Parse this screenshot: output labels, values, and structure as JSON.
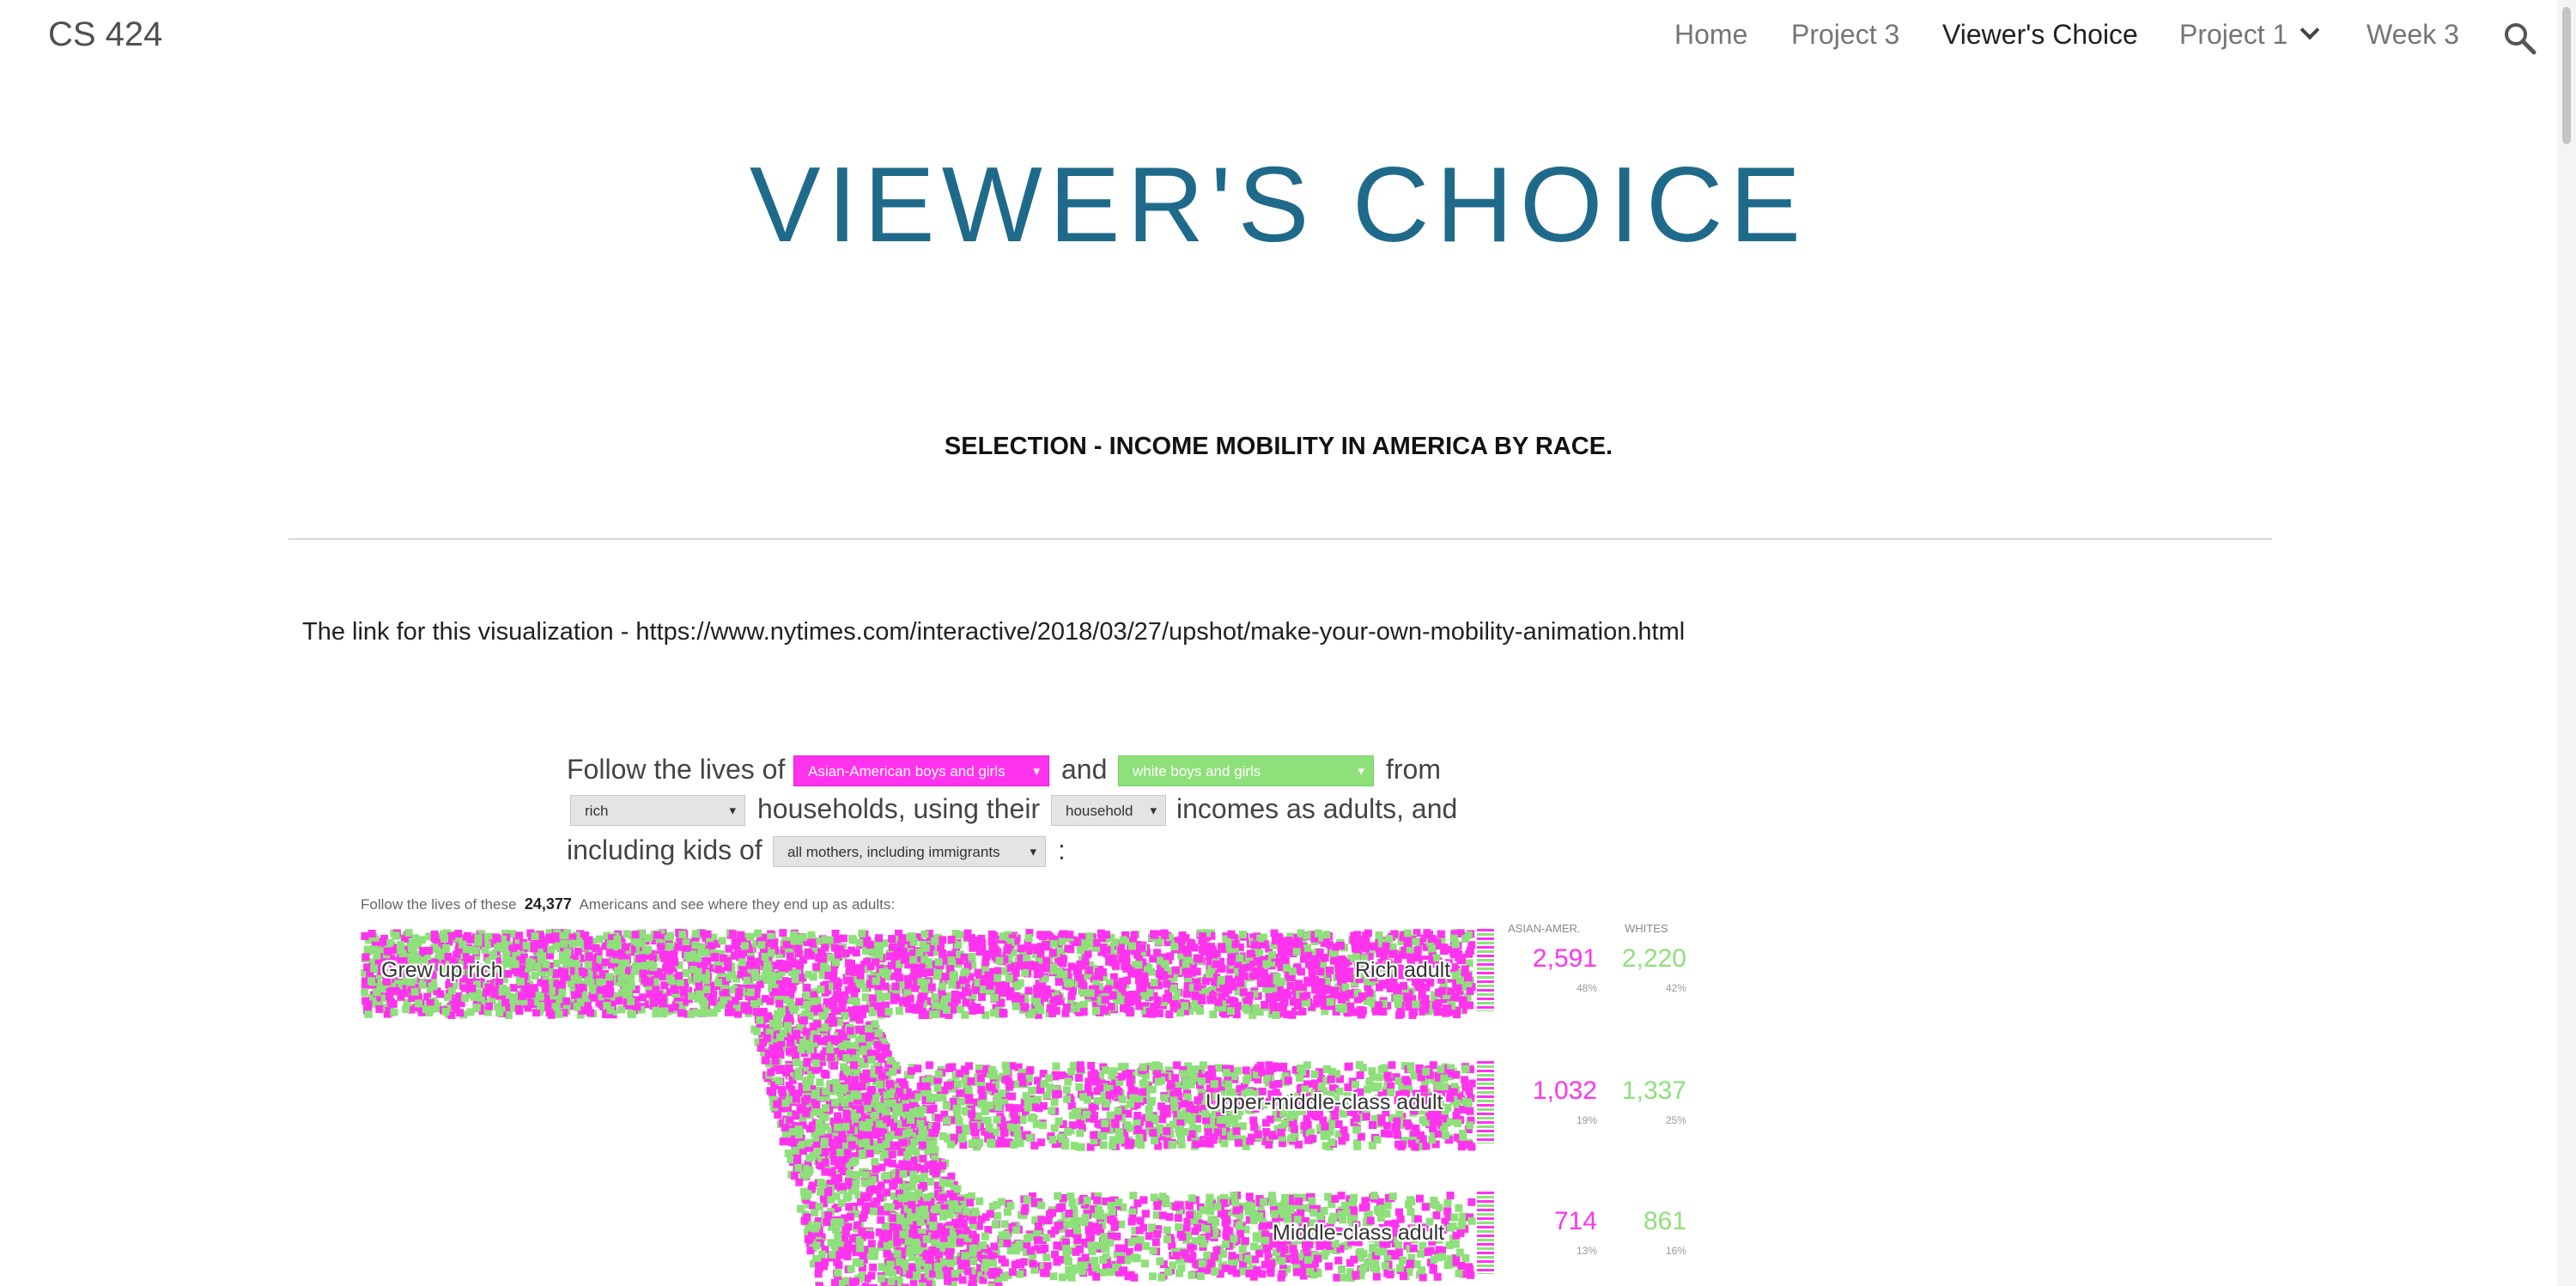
{
  "site": {
    "title": "CS 424"
  },
  "nav": {
    "items": [
      {
        "label": "Home"
      },
      {
        "label": "Project 3"
      },
      {
        "label": "Viewer's Choice"
      },
      {
        "label": "Project 1"
      },
      {
        "label": "Week 3"
      }
    ],
    "search_icon": "search-icon"
  },
  "page": {
    "title": "VIEWER'S CHOICE",
    "section_heading": "SELECTION - INCOME MOBILITY IN AMERICA BY RACE.",
    "link_text": "The link for this visualization - https://www.nytimes.com/interactive/2018/03/27/upshot/make-your-own-mobility-animation.html"
  },
  "viz": {
    "sentence": {
      "follow": "Follow the lives of",
      "and": "and",
      "from": "from",
      "households": "households, using their",
      "incomes": "incomes as adults, and",
      "including": "including kids of",
      "colon": ":"
    },
    "selects": {
      "group_a": "Asian-American boys and girls",
      "group_b": "white boys and girls",
      "origin": "rich",
      "income_type": "household",
      "mothers": "all mothers, including immigrants"
    },
    "intro": {
      "before": "Follow the lives of these",
      "count": "24,377",
      "after": "Americans and see where they end up as adults:"
    },
    "column_headers": {
      "a": "ASIAN-AMER.",
      "b": "WHITES"
    },
    "colors": {
      "group_a": "#ff33ee",
      "group_b": "#8ee07a"
    },
    "start_label": "Grew up rich",
    "outcomes": [
      {
        "label": "Rich adult",
        "a": "2,591",
        "a_pct": "48%",
        "b": "2,220",
        "b_pct": "42%"
      },
      {
        "label": "Upper-middle-class adult",
        "a": "1,032",
        "a_pct": "19%",
        "b": "1,337",
        "b_pct": "25%"
      },
      {
        "label": "Middle-class adult",
        "a": "714",
        "a_pct": "13%",
        "b": "861",
        "b_pct": "16%"
      }
    ]
  }
}
